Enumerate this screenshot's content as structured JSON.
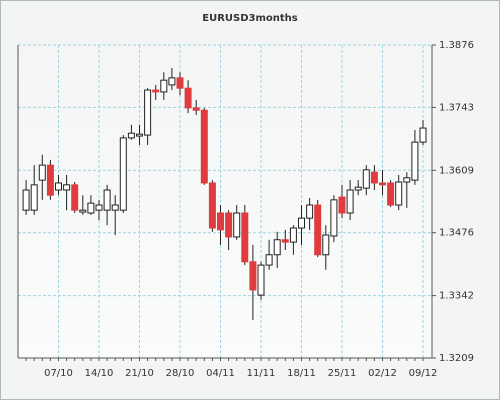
{
  "chart_data": {
    "type": "candlestick",
    "title": "EURUSD3months",
    "categories": [
      null,
      null,
      null,
      null,
      "07/10",
      null,
      null,
      null,
      null,
      "14/10",
      null,
      null,
      null,
      null,
      "21/10",
      null,
      null,
      null,
      null,
      "28/10",
      null,
      null,
      null,
      null,
      "04/11",
      null,
      null,
      null,
      null,
      "11/11",
      null,
      null,
      null,
      null,
      "18/11",
      null,
      null,
      null,
      null,
      "25/11",
      null,
      null,
      null,
      null,
      "02/12",
      null,
      null,
      null,
      null,
      "09/12"
    ],
    "open": [
      1.3524,
      1.3524,
      1.3588,
      1.362,
      1.3567,
      1.3567,
      1.3578,
      1.352,
      1.3518,
      1.3524,
      1.3524,
      1.3524,
      1.3524,
      1.3678,
      1.3682,
      1.3684,
      1.378,
      1.3776,
      1.3791,
      1.3806,
      1.3784,
      1.3742,
      1.3737,
      1.3582,
      1.3518,
      1.3518,
      1.3467,
      1.3518,
      1.3414,
      1.3343,
      1.3407,
      1.3429,
      1.3461,
      1.3456,
      1.3486,
      1.3507,
      1.3535,
      1.3429,
      1.3469,
      1.3552,
      1.3518,
      1.3567,
      1.3571,
      1.3605,
      1.3582,
      1.3582,
      1.3535,
      1.3584,
      1.3588,
      1.3669
    ],
    "high": [
      1.3588,
      1.362,
      1.3642,
      1.3631,
      1.3599,
      1.3599,
      1.3584,
      1.3556,
      1.3556,
      1.3546,
      1.3578,
      1.3556,
      1.3684,
      1.3706,
      1.3706,
      1.3784,
      1.3791,
      1.3818,
      1.3827,
      1.3818,
      1.3801,
      1.3759,
      1.3742,
      1.3588,
      1.3535,
      1.3524,
      1.3535,
      1.3535,
      1.345,
      1.3414,
      1.3461,
      1.3478,
      1.3482,
      1.3492,
      1.3535,
      1.355,
      1.3546,
      1.3492,
      1.3556,
      1.3578,
      1.3588,
      1.3588,
      1.362,
      1.362,
      1.361,
      1.3588,
      1.3599,
      1.3605,
      1.3695,
      1.3716
    ],
    "low": [
      1.3514,
      1.3514,
      1.3546,
      1.3546,
      1.3556,
      1.3524,
      1.3518,
      1.3514,
      1.3514,
      1.3503,
      1.3492,
      1.3471,
      1.3518,
      1.3674,
      1.3663,
      1.3663,
      1.3759,
      1.3759,
      1.378,
      1.3769,
      1.3731,
      1.3727,
      1.3578,
      1.3478,
      1.345,
      1.3439,
      1.3461,
      1.3407,
      1.329,
      1.3333,
      1.3397,
      1.3401,
      1.3439,
      1.3429,
      1.345,
      1.3482,
      1.3424,
      1.3397,
      1.3456,
      1.3507,
      1.3503,
      1.3556,
      1.3556,
      1.3567,
      1.3556,
      1.3531,
      1.3524,
      1.3529,
      1.3578,
      1.3663
    ],
    "close": [
      1.3567,
      1.3578,
      1.362,
      1.3556,
      1.3582,
      1.3578,
      1.3524,
      1.3524,
      1.3539,
      1.3535,
      1.3567,
      1.3535,
      1.3678,
      1.3688,
      1.3686,
      1.378,
      1.3776,
      1.3801,
      1.3806,
      1.3784,
      1.3742,
      1.3737,
      1.3582,
      1.3486,
      1.3482,
      1.3467,
      1.3518,
      1.3414,
      1.3354,
      1.3407,
      1.3429,
      1.3461,
      1.3456,
      1.3486,
      1.3507,
      1.3535,
      1.3429,
      1.3471,
      1.3546,
      1.3518,
      1.3567,
      1.3573,
      1.361,
      1.3582,
      1.3578,
      1.3535,
      1.3584,
      1.3593,
      1.3669,
      1.3699
    ],
    "up_color": "#ffffff",
    "down_color": "#e03c40",
    "ylim": [
      1.3209,
      1.3876
    ],
    "yticks": [
      1.3209,
      1.3342,
      1.3476,
      1.3609,
      1.3743,
      1.3876
    ],
    "grid": true
  }
}
